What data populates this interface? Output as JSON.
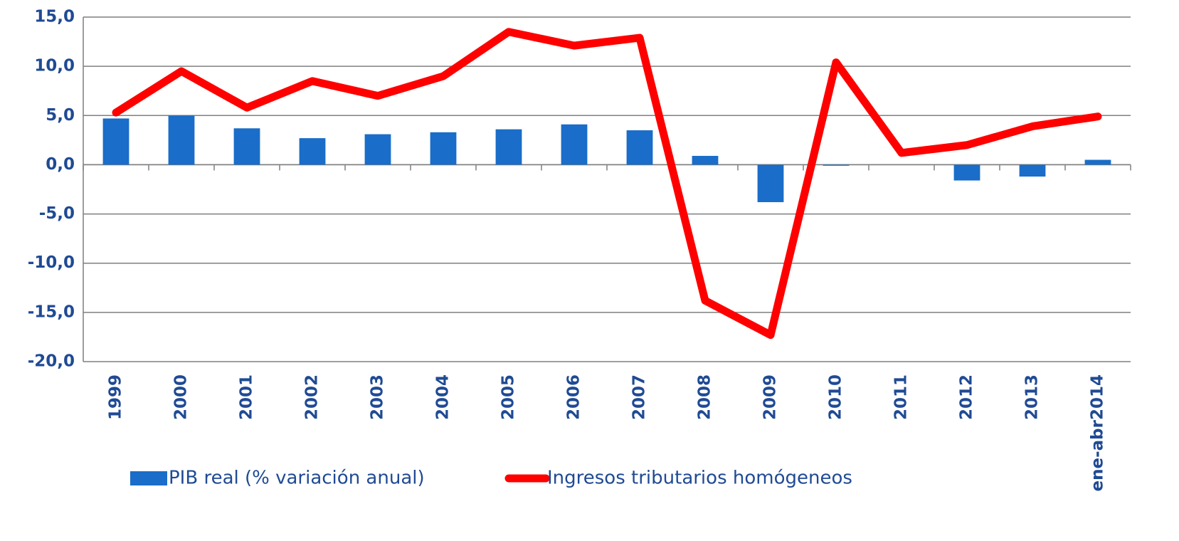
{
  "chart_data": {
    "type": "bar-line",
    "categories": [
      "1999",
      "2000",
      "2001",
      "2002",
      "2003",
      "2004",
      "2005",
      "2006",
      "2007",
      "2008",
      "2009",
      "2010",
      "2011",
      "2012",
      "2013",
      "ene-abr2014"
    ],
    "series": [
      {
        "name": "PIB real (% variación anual)",
        "type": "bar",
        "color": "#1a6dc8",
        "values": [
          4.7,
          5.0,
          3.7,
          2.7,
          3.1,
          3.3,
          3.6,
          4.1,
          3.5,
          0.9,
          -3.8,
          -0.1,
          0.0,
          -1.6,
          -1.2,
          0.5
        ]
      },
      {
        "name": "Ingresos tributarios homógeneos",
        "type": "line",
        "color": "#ff0000",
        "values": [
          5.3,
          9.5,
          5.8,
          8.5,
          7.0,
          9.0,
          13.5,
          12.1,
          12.9,
          -13.8,
          -17.3,
          10.4,
          1.2,
          2.0,
          3.9,
          4.9
        ]
      }
    ],
    "ylim": [
      -20,
      15
    ],
    "yticks": [
      {
        "value": -20,
        "label": "-20,0"
      },
      {
        "value": -15,
        "label": "-15,0"
      },
      {
        "value": -10,
        "label": "-10,0"
      },
      {
        "value": -5,
        "label": "-5,0"
      },
      {
        "value": 0,
        "label": "0,0"
      },
      {
        "value": 5,
        "label": "5,0"
      },
      {
        "value": 10,
        "label": "10,0"
      },
      {
        "value": 15,
        "label": "15,0"
      }
    ],
    "grid": true
  }
}
